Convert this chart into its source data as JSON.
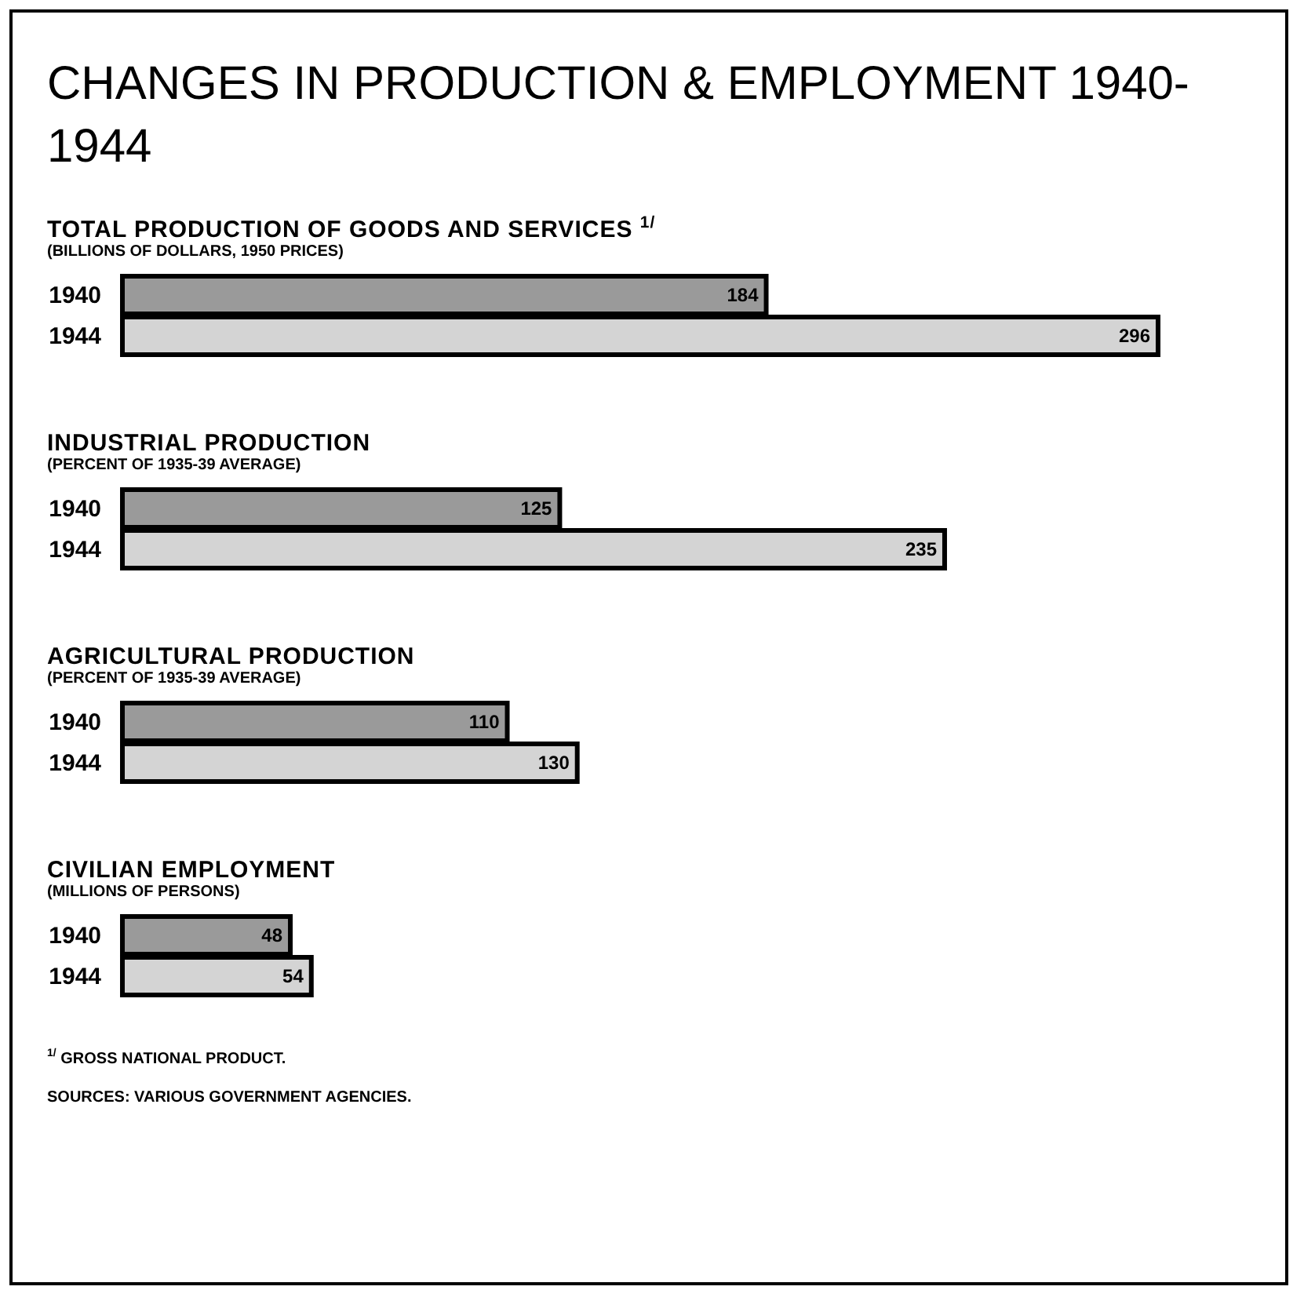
{
  "chart_data": [
    {
      "type": "other",
      "title": "CHANGES IN PRODUCTION & EMPLOYMENT 1940-1944"
    },
    {
      "type": "bar",
      "orientation": "horizontal",
      "title": "TOTAL PRODUCTION OF GOODS AND SERVICES $^{1/}$",
      "subtitle": "(BILLIONS OF DOLLARS, 1950 PRICES)",
      "categories": [
        "1940",
        "1944"
      ],
      "values": [
        184,
        296
      ],
      "colors": [
        "#9a9a9a",
        "#d4d4d4"
      ],
      "data_labels": true
    },
    {
      "type": "bar",
      "orientation": "horizontal",
      "title": "INDUSTRIAL PRODUCTION",
      "subtitle": "(PERCENT OF 1935-39 AVERAGE)",
      "categories": [
        "1940",
        "1944"
      ],
      "values": [
        125,
        235
      ],
      "colors": [
        "#9a9a9a",
        "#d4d4d4"
      ],
      "data_labels": true
    },
    {
      "type": "bar",
      "orientation": "horizontal",
      "title": "AGRICULTURAL PRODUCTION",
      "subtitle": "(PERCENT OF 1935-39 AVERAGE)",
      "categories": [
        "1940",
        "1944"
      ],
      "values": [
        110,
        130
      ],
      "colors": [
        "#9a9a9a",
        "#d4d4d4"
      ],
      "data_labels": true
    },
    {
      "type": "bar",
      "orientation": "horizontal",
      "title": "CIVILIAN EMPLOYMENT",
      "subtitle": "(MILLIONS OF PERSONS)",
      "categories": [
        "1940",
        "1944"
      ],
      "values": [
        48,
        54
      ],
      "colors": [
        "#9a9a9a",
        "#d4d4d4"
      ],
      "data_labels": true,
      "annotations": [
        "$^{1/}$ GROSS NATIONAL PRODUCT.",
        "SOURCES: VARIOUS GOVERNMENT AGENCIES."
      ]
    }
  ]
}
